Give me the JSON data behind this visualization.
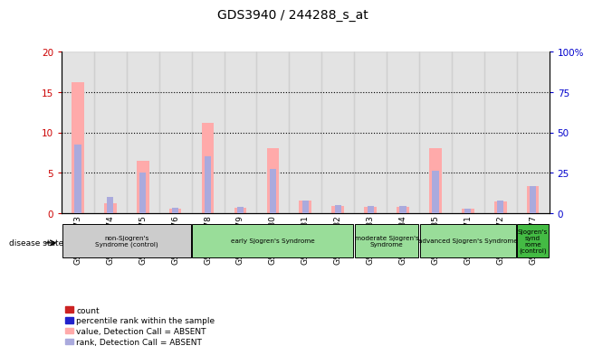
{
  "title": "GDS3940 / 244288_s_at",
  "samples": [
    "GSM569473",
    "GSM569474",
    "GSM569475",
    "GSM569476",
    "GSM569478",
    "GSM569479",
    "GSM569480",
    "GSM569481",
    "GSM569482",
    "GSM569483",
    "GSM569484",
    "GSM569485",
    "GSM569471",
    "GSM569472",
    "GSM569477"
  ],
  "absent_value": [
    16.2,
    1.2,
    6.5,
    0.5,
    11.2,
    0.7,
    8.0,
    1.5,
    0.9,
    0.8,
    0.8,
    8.0,
    0.5,
    1.4,
    3.3
  ],
  "absent_rank": [
    42.5,
    10.0,
    25.0,
    3.5,
    35.0,
    4.0,
    27.5,
    8.0,
    5.0,
    4.5,
    4.5,
    26.0,
    2.5,
    8.0,
    16.5
  ],
  "ylim_left": [
    0,
    20
  ],
  "ylim_right": [
    0,
    100
  ],
  "yticks_left": [
    0,
    5,
    10,
    15,
    20
  ],
  "yticks_right": [
    0,
    25,
    50,
    75,
    100
  ],
  "ytick_right_labels": [
    "0",
    "25",
    "50",
    "75",
    "100%"
  ],
  "ylabel_left_color": "#cc0000",
  "ylabel_right_color": "#0000cc",
  "absent_value_color": "#ffaaaa",
  "absent_rank_color": "#aaaadd",
  "legend": [
    "count",
    "percentile rank within the sample",
    "value, Detection Call = ABSENT",
    "rank, Detection Call = ABSENT"
  ],
  "legend_colors": [
    "#cc2222",
    "#2222cc",
    "#ffaaaa",
    "#aaaadd"
  ],
  "disease_state_label": "disease state",
  "group_configs": [
    {
      "indices": [
        0,
        1,
        2,
        3
      ],
      "label": "non-Sjogren's\nSyndrome (control)",
      "color": "#cccccc"
    },
    {
      "indices": [
        4,
        5,
        6,
        7,
        8
      ],
      "label": "early Sjogren's Syndrome",
      "color": "#99dd99"
    },
    {
      "indices": [
        9,
        10
      ],
      "label": "moderate Sjogren's\nSyndrome",
      "color": "#99dd99"
    },
    {
      "indices": [
        11,
        12,
        13
      ],
      "label": "advanced Sjogren's Syndrome",
      "color": "#99dd99"
    },
    {
      "indices": [
        14
      ],
      "label": "Sjogren's\nsynd\nrome\n(control)",
      "color": "#44bb44"
    }
  ]
}
